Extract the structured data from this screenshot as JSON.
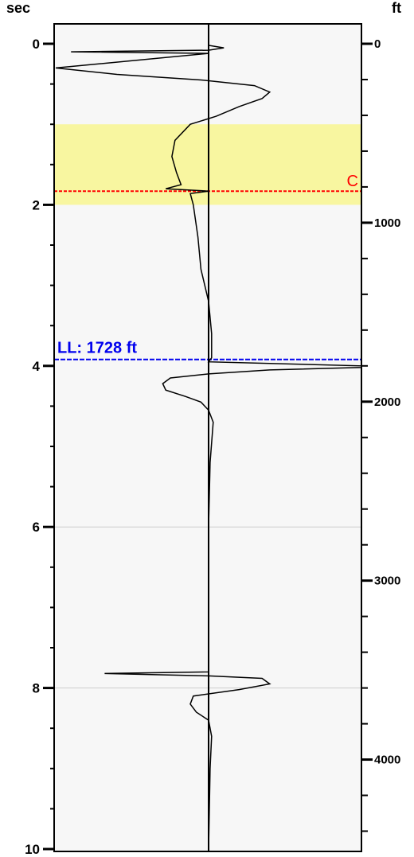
{
  "chart_data": {
    "type": "line",
    "title": "",
    "left_axis": {
      "label": "sec",
      "range": [
        0,
        10
      ],
      "major_ticks": [
        0,
        2,
        4,
        6,
        8,
        10
      ],
      "major_tick_labels": [
        "0",
        "2",
        "4",
        "6",
        "8",
        "10"
      ],
      "minor_tick_step": 0.5
    },
    "right_axis": {
      "label": "ft",
      "range": [
        0,
        4500
      ],
      "major_ticks": [
        0,
        1000,
        2000,
        3000,
        4000
      ],
      "major_tick_labels": [
        "0",
        "1000",
        "2000",
        "3000",
        "4000"
      ],
      "minor_tick_step": 200
    },
    "grid_lines_sec": [
      6,
      8
    ],
    "zone": {
      "label": "C",
      "from_sec": 1.0,
      "to_sec": 2.0,
      "marker_sec": 1.83,
      "fill_color": "#f8f6a0",
      "marker_color": "#ff0000"
    },
    "level_line": {
      "label": "LL: 1728 ft",
      "sec": 3.92,
      "color": "#0000ee"
    },
    "baseline_amplitude": 0,
    "amplitude_range": [
      -1,
      1
    ],
    "trace": {
      "name": "",
      "color": "#000000",
      "points": [
        [
          0.0,
          0.0
        ],
        [
          0.02,
          0.0
        ],
        [
          0.05,
          0.1
        ],
        [
          0.08,
          0.0
        ],
        [
          0.1,
          -0.9
        ],
        [
          0.12,
          0.0
        ],
        [
          0.3,
          -1.0
        ],
        [
          0.38,
          -0.6
        ],
        [
          0.45,
          -0.05
        ],
        [
          0.52,
          0.3
        ],
        [
          0.6,
          0.4
        ],
        [
          0.68,
          0.35
        ],
        [
          0.78,
          0.2
        ],
        [
          0.9,
          0.05
        ],
        [
          1.0,
          -0.12
        ],
        [
          1.2,
          -0.22
        ],
        [
          1.4,
          -0.24
        ],
        [
          1.6,
          -0.21
        ],
        [
          1.75,
          -0.18
        ],
        [
          1.8,
          -0.28
        ],
        [
          1.83,
          0.0
        ],
        [
          1.86,
          -0.12
        ],
        [
          2.0,
          -0.1
        ],
        [
          2.4,
          -0.07
        ],
        [
          2.8,
          -0.05
        ],
        [
          3.2,
          0.0
        ],
        [
          3.6,
          0.02
        ],
        [
          3.9,
          0.02
        ],
        [
          3.95,
          0.0
        ],
        [
          4.0,
          1.0
        ],
        [
          4.02,
          1.0
        ],
        [
          4.05,
          0.4
        ],
        [
          4.1,
          0.0
        ],
        [
          4.15,
          -0.25
        ],
        [
          4.22,
          -0.3
        ],
        [
          4.3,
          -0.28
        ],
        [
          4.38,
          -0.15
        ],
        [
          4.45,
          -0.05
        ],
        [
          4.55,
          0.0
        ],
        [
          4.7,
          0.03
        ],
        [
          5.2,
          0.01
        ],
        [
          6.0,
          0.0
        ],
        [
          7.0,
          0.0
        ],
        [
          7.8,
          0.0
        ],
        [
          7.82,
          -0.68
        ],
        [
          7.85,
          0.0
        ],
        [
          7.88,
          0.35
        ],
        [
          7.95,
          0.4
        ],
        [
          8.02,
          0.2
        ],
        [
          8.1,
          -0.1
        ],
        [
          8.2,
          -0.12
        ],
        [
          8.3,
          -0.08
        ],
        [
          8.4,
          0.0
        ],
        [
          8.6,
          0.02
        ],
        [
          9.0,
          0.01
        ],
        [
          10.0,
          0.0
        ]
      ]
    }
  }
}
